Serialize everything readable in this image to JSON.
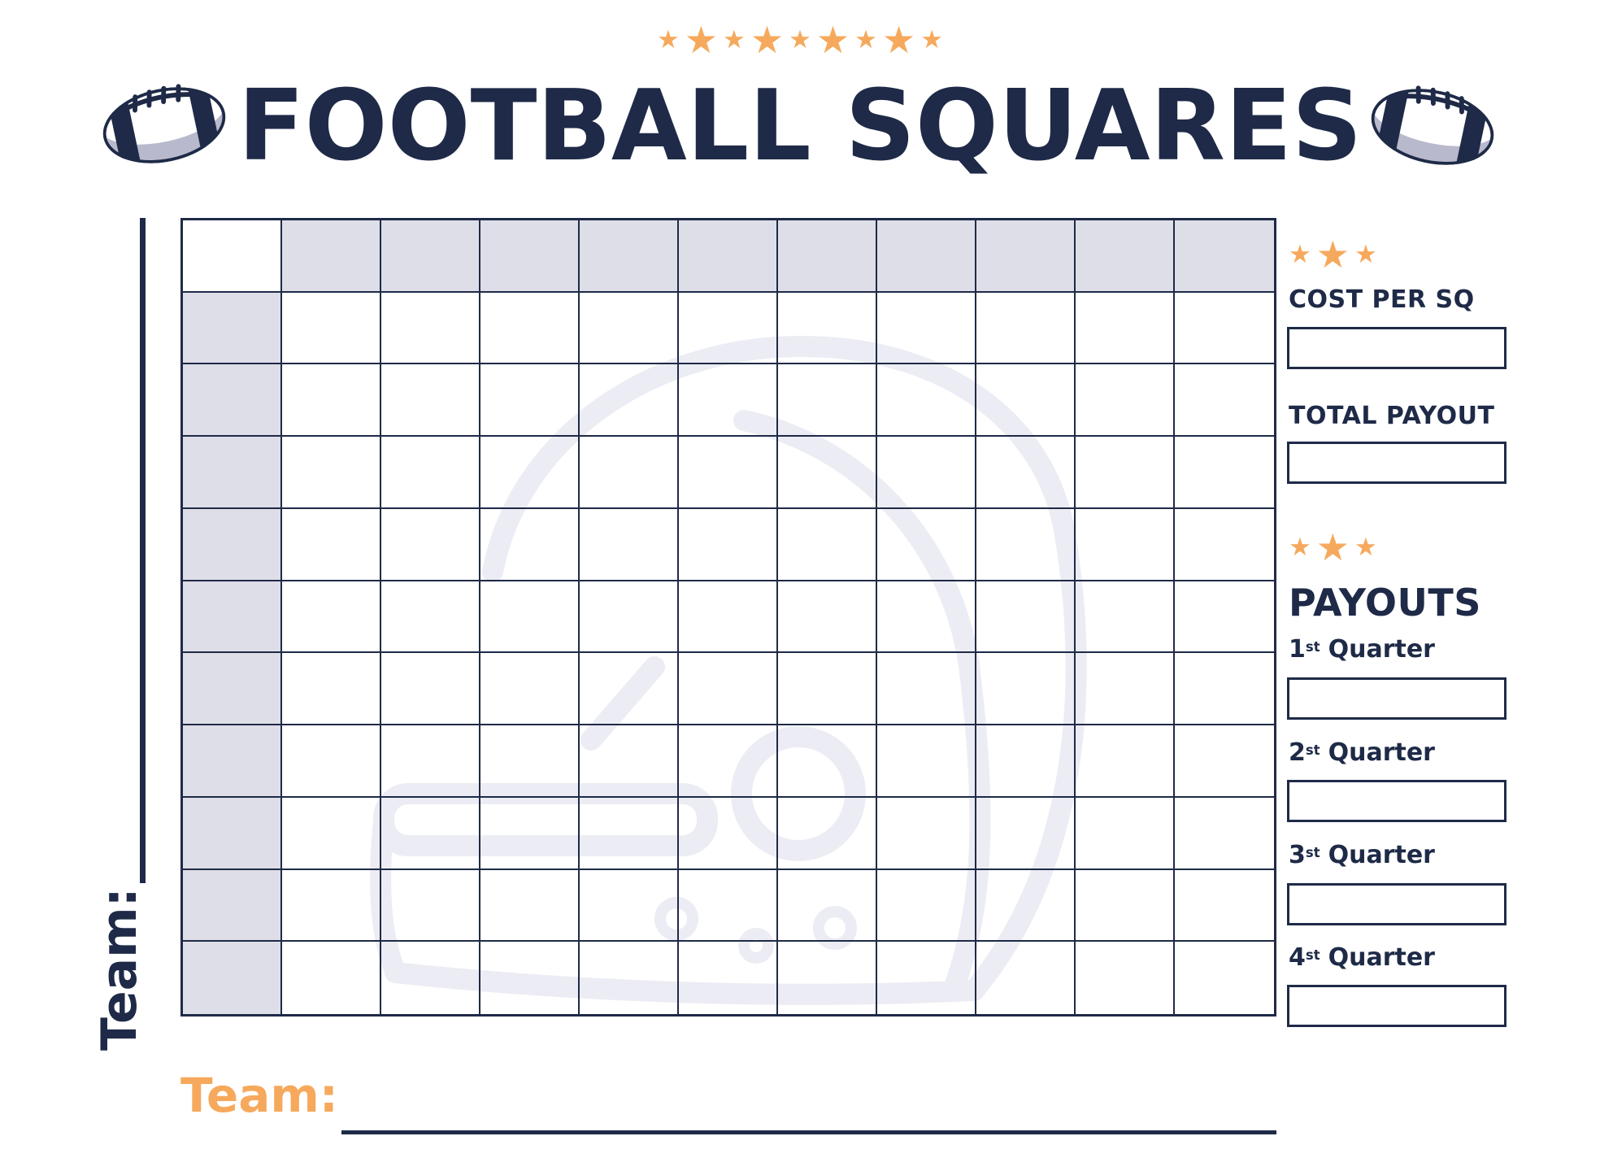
{
  "header": {
    "title": "FOOTBALL SQUARES"
  },
  "icons": {
    "star": "★"
  },
  "grid": {
    "rows": 11,
    "cols": 11
  },
  "left_team": {
    "label": "Team:"
  },
  "bottom_team": {
    "label": "Team:"
  },
  "sidebar": {
    "cost_per_sq": {
      "label": "COST PER SQ",
      "value": ""
    },
    "total_payout": {
      "label": "TOTAL PAYOUT",
      "value": ""
    },
    "payouts": {
      "heading": "PAYOUTS",
      "quarters": [
        {
          "num": "1",
          "sup": "st",
          "word": "Quarter",
          "value": ""
        },
        {
          "num": "2",
          "sup": "st",
          "word": "Quarter",
          "value": ""
        },
        {
          "num": "3",
          "sup": "st",
          "word": "Quarter",
          "value": ""
        },
        {
          "num": "4",
          "sup": "st",
          "word": "Quarter",
          "value": ""
        }
      ]
    }
  },
  "colors": {
    "navy": "#1E2A47",
    "orange": "#F6A95C",
    "header_cell": "#DEDEE8",
    "ball_shadow": "#B9B9CD",
    "watermark": "#ECECF4"
  }
}
